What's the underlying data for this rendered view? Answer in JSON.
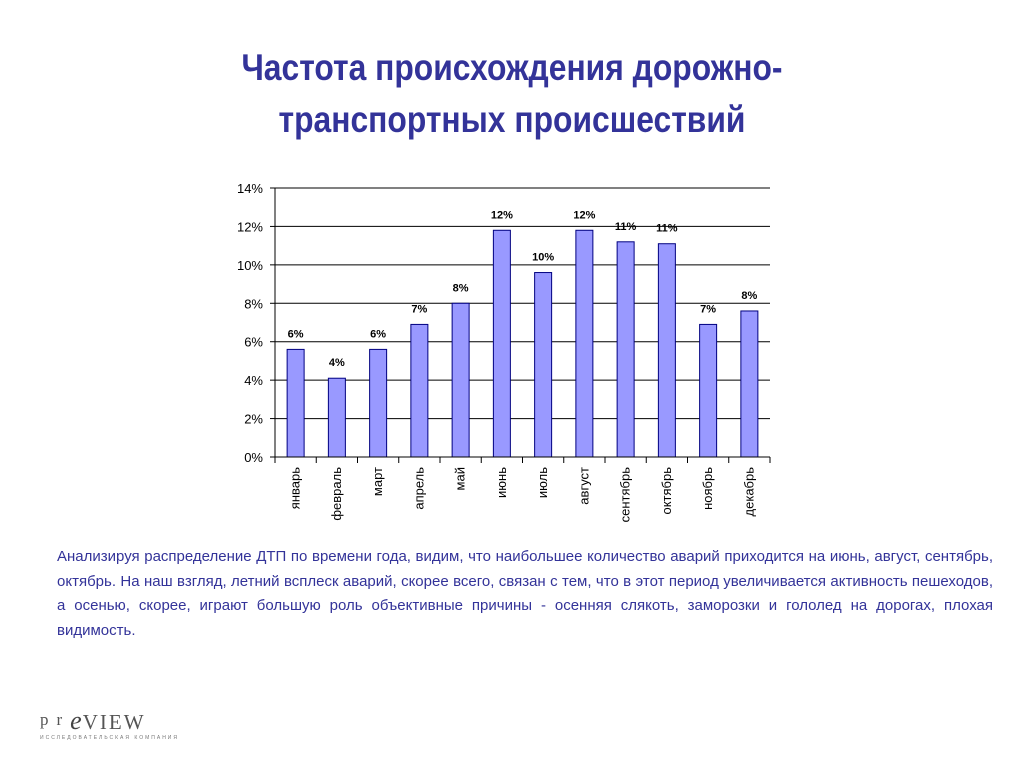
{
  "title": {
    "line1": "Частота происхождения дорожно-",
    "line2": "транспортных происшествий"
  },
  "chart_data": {
    "type": "bar",
    "categories": [
      "январь",
      "февраль",
      "март",
      "апрель",
      "май",
      "июнь",
      "июль",
      "август",
      "сентябрь",
      "октябрь",
      "ноябрь",
      "декабрь"
    ],
    "values": [
      5.6,
      4.1,
      5.6,
      6.9,
      8.0,
      11.8,
      9.6,
      11.8,
      11.2,
      11.1,
      6.9,
      7.6
    ],
    "data_labels": [
      "6%",
      "4%",
      "6%",
      "7%",
      "8%",
      "12%",
      "10%",
      "12%",
      "11%",
      "11%",
      "7%",
      "8%"
    ],
    "yticks": [
      "0%",
      "2%",
      "4%",
      "6%",
      "8%",
      "10%",
      "12%",
      "14%"
    ],
    "ylim": [
      0,
      14
    ],
    "y_unit": "%",
    "grid": true,
    "bar_color": "#9999ff",
    "bar_edge_color": "#000080"
  },
  "body_text": "Анализируя распределение ДТП по времени года, видим, что наибольшее количество аварий  приходится на июнь, август, сентябрь, октябрь. На наш взгляд, летний всплеск аварий, скорее всего, связан  с тем, что в этот период увеличивается активность пешеходов, а осенью, скорее, играют большую роль объективные причины - осенняя слякоть, заморозки и гололед на дорогах, плохая видимость.",
  "logo": {
    "pr": "pr",
    "e": "e",
    "view": "VIEW",
    "tagline": "ИССЛЕДОВАТЕЛЬСКАЯ КОМПАНИЯ"
  },
  "colors": {
    "title": "#333399",
    "text": "#333399"
  }
}
